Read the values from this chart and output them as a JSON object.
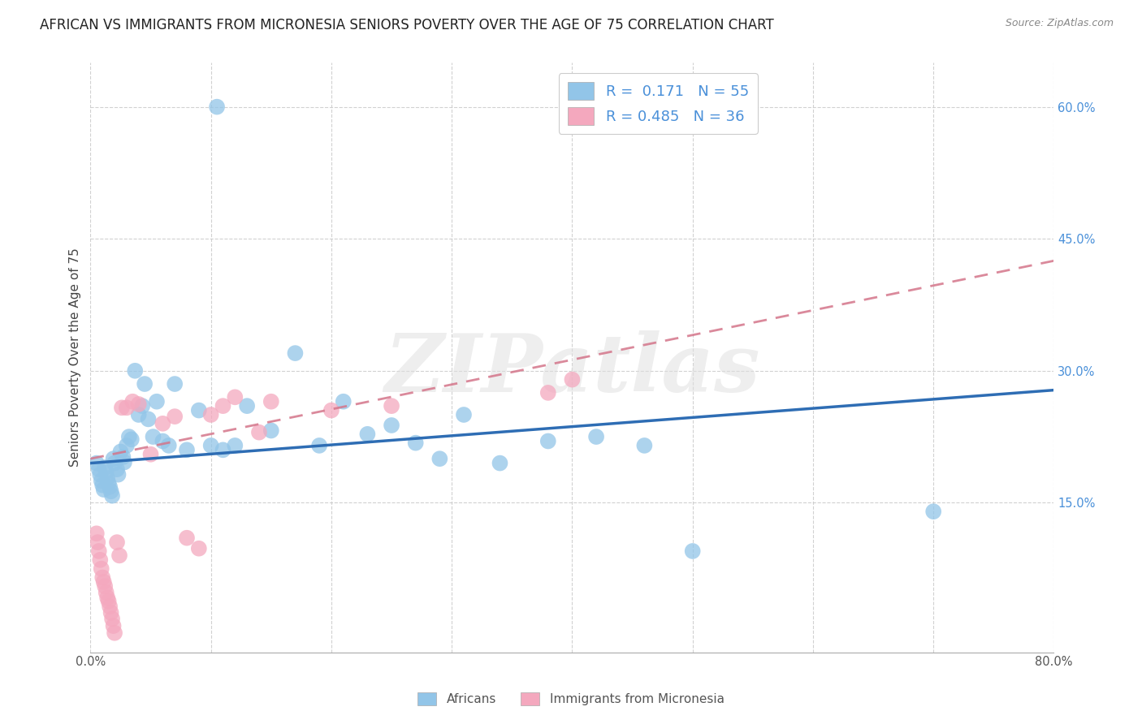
{
  "title": "AFRICAN VS IMMIGRANTS FROM MICRONESIA SENIORS POVERTY OVER THE AGE OF 75 CORRELATION CHART",
  "source": "Source: ZipAtlas.com",
  "ylabel": "Seniors Poverty Over the Age of 75",
  "xlim": [
    0,
    0.8
  ],
  "ylim": [
    -0.02,
    0.65
  ],
  "ytick_positions": [
    0.15,
    0.3,
    0.45,
    0.6
  ],
  "ytick_labels": [
    "15.0%",
    "30.0%",
    "45.0%",
    "60.0%"
  ],
  "legend_labels": [
    "Africans",
    "Immigrants from Micronesia"
  ],
  "R_african": 0.171,
  "N_african": 55,
  "R_micronesia": 0.485,
  "N_micronesia": 36,
  "color_african": "#92c5e8",
  "color_micronesia": "#f4a8be",
  "color_line_african": "#2e6db4",
  "color_line_micronesia": "#d4758a",
  "af_line_x0": 0.0,
  "af_line_y0": 0.195,
  "af_line_x1": 0.8,
  "af_line_y1": 0.278,
  "mi_line_x0": 0.0,
  "mi_line_y0": 0.2,
  "mi_line_x1": 0.8,
  "mi_line_y1": 0.425,
  "african_x": [
    0.005,
    0.007,
    0.008,
    0.009,
    0.01,
    0.011,
    0.012,
    0.013,
    0.014,
    0.015,
    0.016,
    0.017,
    0.018,
    0.019,
    0.02,
    0.022,
    0.023,
    0.025,
    0.027,
    0.028,
    0.03,
    0.032,
    0.034,
    0.037,
    0.04,
    0.043,
    0.045,
    0.048,
    0.052,
    0.055,
    0.06,
    0.065,
    0.07,
    0.08,
    0.09,
    0.1,
    0.11,
    0.12,
    0.13,
    0.15,
    0.17,
    0.19,
    0.21,
    0.23,
    0.25,
    0.27,
    0.29,
    0.31,
    0.34,
    0.38,
    0.42,
    0.46,
    0.105,
    0.5,
    0.7
  ],
  "african_y": [
    0.195,
    0.188,
    0.182,
    0.175,
    0.17,
    0.165,
    0.19,
    0.185,
    0.178,
    0.172,
    0.168,
    0.163,
    0.158,
    0.2,
    0.195,
    0.188,
    0.182,
    0.208,
    0.202,
    0.196,
    0.215,
    0.225,
    0.222,
    0.3,
    0.25,
    0.26,
    0.285,
    0.245,
    0.225,
    0.265,
    0.22,
    0.215,
    0.285,
    0.21,
    0.255,
    0.215,
    0.21,
    0.215,
    0.26,
    0.232,
    0.32,
    0.215,
    0.265,
    0.228,
    0.238,
    0.218,
    0.2,
    0.25,
    0.195,
    0.22,
    0.225,
    0.215,
    0.6,
    0.095,
    0.14
  ],
  "micronesia_x": [
    0.005,
    0.006,
    0.007,
    0.008,
    0.009,
    0.01,
    0.011,
    0.012,
    0.013,
    0.014,
    0.015,
    0.016,
    0.017,
    0.018,
    0.019,
    0.02,
    0.022,
    0.024,
    0.026,
    0.03,
    0.035,
    0.04,
    0.05,
    0.06,
    0.07,
    0.08,
    0.09,
    0.1,
    0.11,
    0.12,
    0.14,
    0.15,
    0.2,
    0.25,
    0.38,
    0.4
  ],
  "micronesia_y": [
    0.115,
    0.105,
    0.095,
    0.085,
    0.075,
    0.065,
    0.06,
    0.055,
    0.048,
    0.042,
    0.038,
    0.032,
    0.025,
    0.018,
    0.01,
    0.002,
    0.105,
    0.09,
    0.258,
    0.258,
    0.265,
    0.262,
    0.205,
    0.24,
    0.248,
    0.11,
    0.098,
    0.25,
    0.26,
    0.27,
    0.23,
    0.265,
    0.255,
    0.26,
    0.275,
    0.29
  ],
  "grid_color": "#cccccc",
  "title_fontsize": 12,
  "axis_label_fontsize": 11,
  "tick_fontsize": 10.5,
  "background_color": "#ffffff",
  "watermark": "ZIPatlas"
}
